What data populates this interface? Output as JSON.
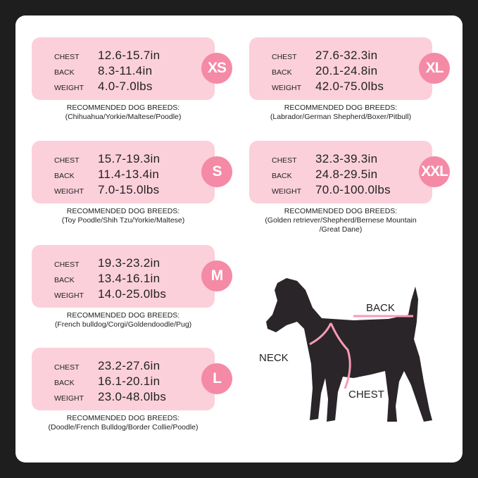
{
  "labels": {
    "chest": "CHEST",
    "back": "BACK",
    "weight": "WEIGHT",
    "recommended": "RECOMMENDED DOG BREEDS:"
  },
  "sizes": [
    {
      "size": "XS",
      "chest": "12.6-15.7in",
      "back": "8.3-11.4in",
      "weight": "4.0-7.0lbs",
      "breeds": [
        "(Chihuahua/Yorkie/Maltese/Poodle)"
      ]
    },
    {
      "size": "S",
      "chest": "15.7-19.3in",
      "back": "11.4-13.4in",
      "weight": "7.0-15.0lbs",
      "breeds": [
        "(Toy Poodle/Shih Tzu/Yorkie/Maltese)"
      ]
    },
    {
      "size": "M",
      "chest": "19.3-23.2in",
      "back": "13.4-16.1in",
      "weight": "14.0-25.0lbs",
      "breeds": [
        "(French bulldog/Corgi/Goldendoodle/Pug)"
      ]
    },
    {
      "size": "L",
      "chest": "23.2-27.6in",
      "back": "16.1-20.1in",
      "weight": "23.0-48.0lbs",
      "breeds": [
        "(Doodle/French Bulldog/Border Collie/Poodle)"
      ]
    },
    {
      "size": "XL",
      "chest": "27.6-32.3in",
      "back": "20.1-24.8in",
      "weight": "42.0-75.0lbs",
      "breeds": [
        "(Labrador/German Shepherd/Boxer/Pitbull)"
      ]
    },
    {
      "size": "XXL",
      "chest": "32.3-39.3in",
      "back": "24.8-29.5in",
      "weight": "70.0-100.0lbs",
      "breeds": [
        "(Golden retriever/Shepherd/Bernese Mountain",
        "/Great Dane)"
      ]
    }
  ],
  "diagram": {
    "back": "BACK",
    "neck": "NECK",
    "chest": "CHEST"
  },
  "colors": {
    "box": "#fbd0db",
    "circle": "#f48aa6",
    "background": "#1e1e1e",
    "dog": "#2a2528",
    "harness": "#f59bb5"
  }
}
